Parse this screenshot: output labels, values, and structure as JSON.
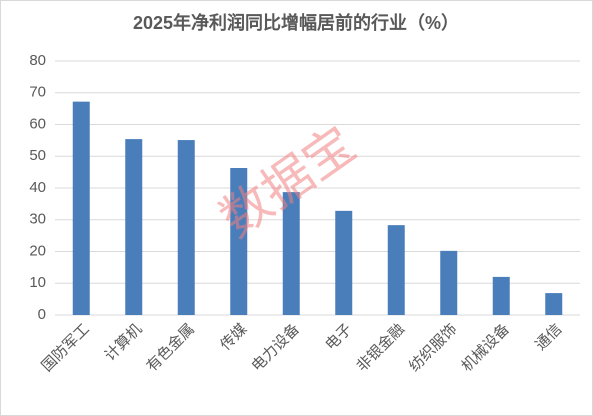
{
  "chart_data": {
    "type": "bar",
    "title": "2025年净利润同比增幅居前的行业（%）",
    "categories": [
      "国防军工",
      "计算机",
      "有色金属",
      "传媒",
      "电力设备",
      "电子",
      "非银金融",
      "纺织服饰",
      "机械设备",
      "通信"
    ],
    "values": [
      67.2,
      55.4,
      55.1,
      46.3,
      38.7,
      32.8,
      28.3,
      20.2,
      12.0,
      6.9
    ],
    "color": "#4a7ebb",
    "ylim": [
      0,
      80
    ],
    "yticks": [
      0,
      10,
      20,
      30,
      40,
      50,
      60,
      70,
      80
    ],
    "grid": true,
    "watermark": "数据宝"
  }
}
